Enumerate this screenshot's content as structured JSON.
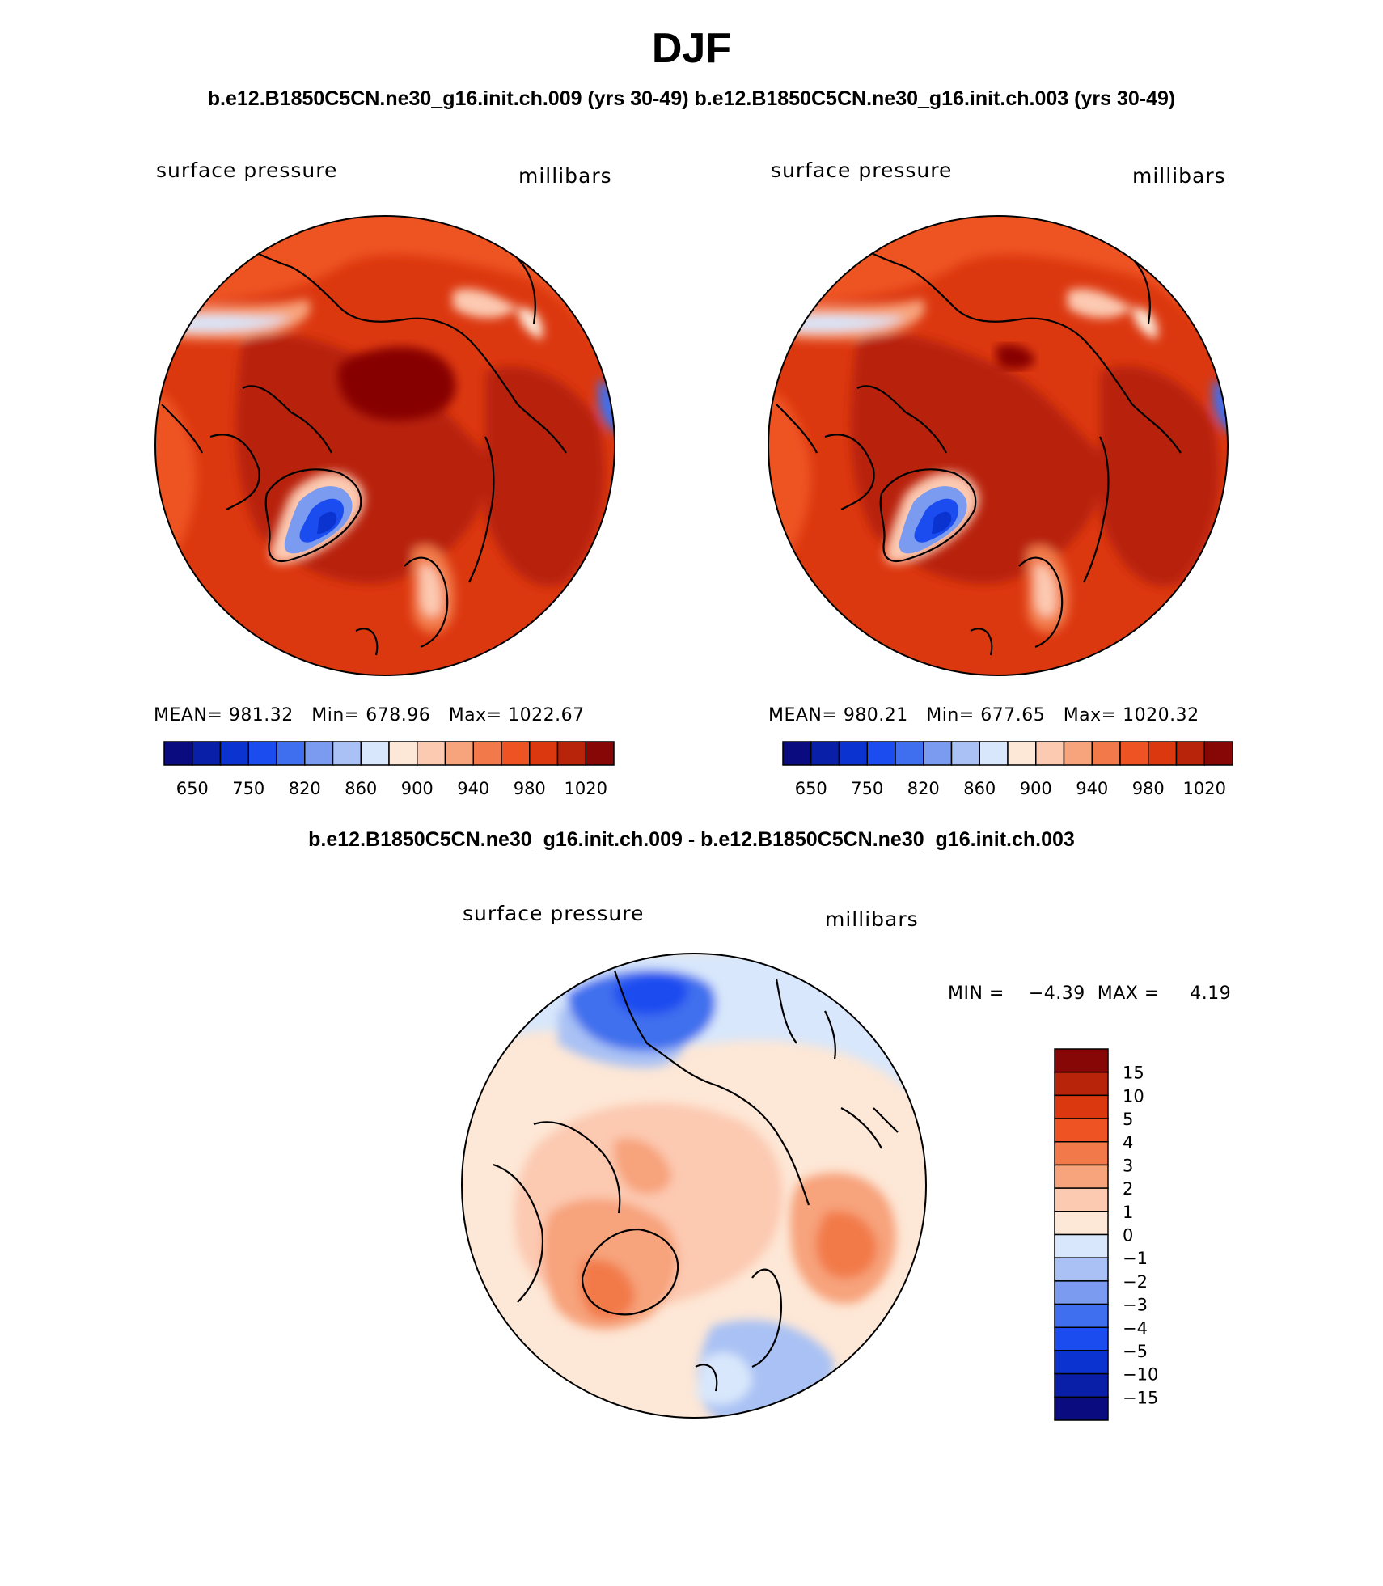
{
  "figure": {
    "title": "DJF",
    "case_title": "b.e12.B1850C5CN.ne30_g16.init.ch.009 (yrs 30-49)  b.e12.B1850C5CN.ne30_g16.init.ch.003 (yrs 30-49)",
    "diff_title": "b.e12.B1850C5CN.ne30_g16.init.ch.009 - b.e12.B1850C5CN.ne30_g16.init.ch.003"
  },
  "panels": [
    {
      "variable": "surface pressure",
      "units": "millibars",
      "stats": "MEAN= 981.32   Min= 678.96   Max= 1022.67"
    },
    {
      "variable": "surface pressure",
      "units": "millibars",
      "stats": "MEAN= 980.21   Min= 677.65   Max= 1020.32"
    }
  ],
  "diff_panel": {
    "variable": "surface pressure",
    "units": "millibars",
    "stats": "MIN =    −4.39  MAX =     4.19"
  },
  "colorbar_abs": {
    "colors": [
      "#0b0b80",
      "#0a1fa8",
      "#0b33cf",
      "#1a4cf0",
      "#3f6fee",
      "#7a9bef",
      "#a9c1f4",
      "#d8e7fb",
      "#fde7d6",
      "#fcc9b1",
      "#f7a37c",
      "#f27a4a",
      "#ee5323",
      "#dc3810",
      "#b82409",
      "#870606"
    ],
    "labels": [
      "650",
      "750",
      "820",
      "860",
      "900",
      "940",
      "980",
      "1020"
    ]
  },
  "colorbar_diff": {
    "colors": [
      "#870606",
      "#b82409",
      "#dc3810",
      "#ee5323",
      "#f27a4a",
      "#f7a37c",
      "#fcc9b1",
      "#fde7d6",
      "#d8e7fb",
      "#a9c1f4",
      "#7a9bef",
      "#3f6fee",
      "#1a4cf0",
      "#0b33cf",
      "#0a1fa8",
      "#0b0b80"
    ],
    "labels": [
      "15",
      "10",
      "5",
      "4",
      "3",
      "2",
      "1",
      "0",
      "−1",
      "−2",
      "−3",
      "−4",
      "−5",
      "−10",
      "−15"
    ]
  }
}
